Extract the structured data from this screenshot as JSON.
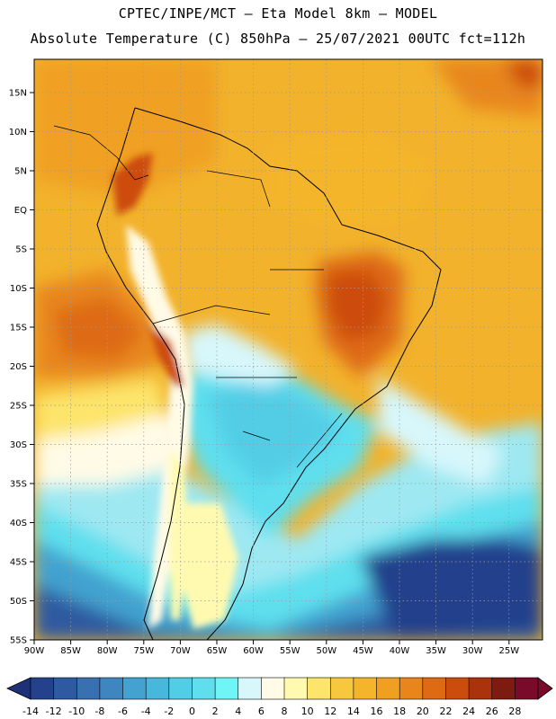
{
  "title": {
    "line1": "CPTEC/INPE/MCT –  Eta Model 8km – MODEL",
    "line2": "Absolute Temperature (C) 850hPa – 25/07/2021 00UTC fct=112h"
  },
  "map": {
    "lat_labels": [
      "15N",
      "10N",
      "5N",
      "EQ",
      "5S",
      "10S",
      "15S",
      "20S",
      "25S",
      "30S",
      "35S",
      "40S",
      "45S",
      "50S",
      "55S"
    ],
    "lon_labels": [
      "90W",
      "85W",
      "80W",
      "75W",
      "70W",
      "65W",
      "60W",
      "55W",
      "50W",
      "45W",
      "40W",
      "35W",
      "30W",
      "25W"
    ]
  },
  "colorbar": {
    "values": [
      -14,
      -12,
      -10,
      -8,
      -6,
      -4,
      -2,
      0,
      2,
      4,
      6,
      8,
      10,
      12,
      14,
      16,
      18,
      20,
      22,
      24,
      26,
      28
    ],
    "labels": [
      "-14",
      "-12",
      "-10",
      "-8",
      "-6",
      "-4",
      "-2",
      "0",
      "2",
      "4",
      "6",
      "8",
      "10",
      "12",
      "14",
      "16",
      "18",
      "20",
      "22",
      "24",
      "26",
      "28"
    ],
    "colors": [
      "#24418c",
      "#2d5aa0",
      "#3870b0",
      "#3f86c0",
      "#43a2cf",
      "#47b8dc",
      "#52cde6",
      "#5fdfee",
      "#6ff5f5",
      "#d7f7fb",
      "#fffbe6",
      "#fffab0",
      "#fde46a",
      "#f7c83e",
      "#f5b52b",
      "#f0a020",
      "#e8861c",
      "#de6a14",
      "#cc4c0e",
      "#aa320c",
      "#7d1a12",
      "#7a0a2a"
    ],
    "left_arrow_color": "#1e3078",
    "right_arrow_color": "#7a0a2a"
  }
}
